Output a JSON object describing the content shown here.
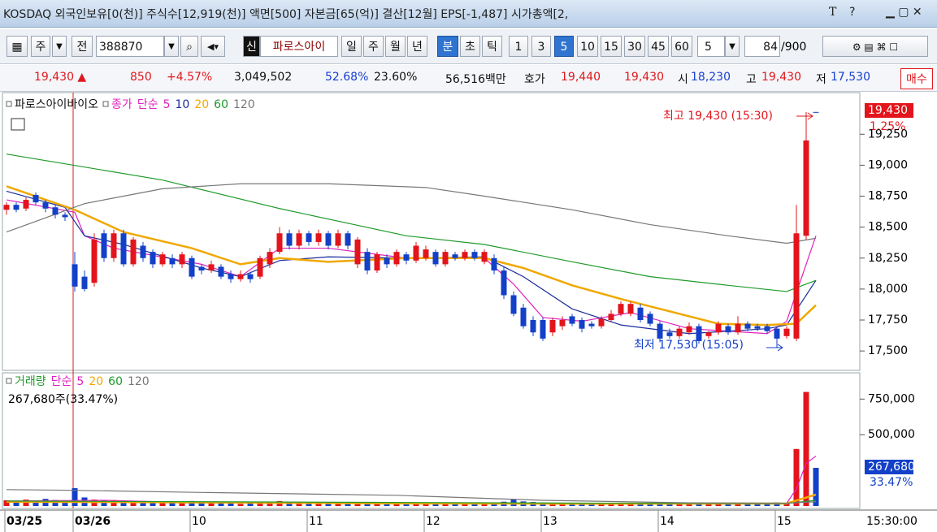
{
  "header": {
    "ticker": "KOSDAQ 외국인보유[0(천)] 주식수[12,919(천)] 액면[500] 자본금[65(억)] 결산[12월] EPS[-1,487] 시가총액[2,",
    "buttons": [
      "T",
      "?"
    ]
  },
  "toolbar": {
    "period_unit": "주",
    "mode": "전",
    "code": "388870",
    "tag": "신",
    "name": "파로스아이",
    "periods": [
      "일",
      "주",
      "월",
      "년",
      "분",
      "초",
      "틱"
    ],
    "minutes": [
      "1",
      "3",
      "5",
      "10",
      "15",
      "30",
      "45",
      "60"
    ],
    "count_input": "5",
    "shown": "84",
    "total": "/900"
  },
  "info": {
    "price": "19,430 ▲",
    "change": "850",
    "rate": "+4.57%",
    "volume": "3,049,502",
    "ratio1": "52.68%",
    "ratio2": "23.60%",
    "amount": "56,516백만",
    "quote_label": "호가",
    "ask": "19,440",
    "bid": "19,430",
    "open_label": "시",
    "open": "18,230",
    "high_label": "고",
    "high": "19,430",
    "low_label": "저",
    "low": "17,530",
    "buy": "매수"
  },
  "clock": "15:30:00",
  "chart_data": [
    {
      "type": "candlestick",
      "name": "파로스아이바이오",
      "indicator": "종가",
      "ma_type": "단순",
      "categories": [
        "03/25",
        null,
        null,
        null,
        null,
        null,
        null,
        "03/26",
        null,
        null,
        null,
        null,
        null,
        null,
        null,
        null,
        null,
        null,
        null,
        "10",
        null,
        null,
        null,
        null,
        null,
        null,
        null,
        null,
        null,
        null,
        null,
        "11",
        null,
        null,
        null,
        null,
        null,
        null,
        null,
        null,
        null,
        null,
        null,
        "12",
        null,
        null,
        null,
        null,
        null,
        null,
        null,
        null,
        null,
        null,
        null,
        "13",
        null,
        null,
        null,
        null,
        null,
        null,
        null,
        null,
        null,
        null,
        null,
        "14",
        null,
        null,
        null,
        null,
        null,
        null,
        null,
        null,
        null,
        null,
        null,
        "15",
        null,
        null,
        null,
        null
      ],
      "open": [
        18640,
        18680,
        18650,
        18760,
        18700,
        18660,
        18600,
        18200,
        18100,
        18050,
        18450,
        18250,
        18450,
        18200,
        18350,
        18300,
        18200,
        18250,
        18200,
        18250,
        18180,
        18150,
        18180,
        18120,
        18080,
        18120,
        18100,
        18200,
        18300,
        18450,
        18350,
        18450,
        18380,
        18450,
        18350,
        18450,
        18200,
        18300,
        18150,
        18250,
        18200,
        18280,
        18230,
        18250,
        18300,
        18200,
        18280,
        18250,
        18300,
        18220,
        18250,
        18150,
        17950,
        17850,
        17750,
        17750,
        17650,
        17700,
        17780,
        17750,
        17720,
        17700,
        17750,
        17800,
        17800,
        17850,
        17800,
        17720,
        17650,
        17620,
        17650,
        17700,
        17620,
        17650,
        17700,
        17650,
        17720,
        17700,
        17700,
        17680,
        17620,
        17600,
        18430,
        19430
      ],
      "high": [
        18700,
        18700,
        18740,
        18780,
        18720,
        18680,
        18620,
        18300,
        18150,
        18450,
        18480,
        18480,
        18480,
        18420,
        18380,
        18320,
        18300,
        18280,
        18300,
        18270,
        18200,
        18230,
        18200,
        18150,
        18150,
        18140,
        18270,
        18330,
        18500,
        18480,
        18480,
        18470,
        18480,
        18470,
        18480,
        18470,
        18420,
        18330,
        18300,
        18280,
        18320,
        18300,
        18380,
        18350,
        18320,
        18320,
        18300,
        18320,
        18320,
        18320,
        18280,
        18180,
        17980,
        17880,
        17780,
        17770,
        17770,
        17780,
        17800,
        17770,
        17740,
        17780,
        17830,
        17900,
        17900,
        17880,
        17820,
        17740,
        17680,
        17700,
        17730,
        17720,
        17660,
        17740,
        17720,
        17780,
        17740,
        17720,
        17720,
        17700,
        17700,
        18680,
        19430,
        19430
      ],
      "low": [
        18600,
        18620,
        18630,
        18680,
        18620,
        18570,
        18550,
        17980,
        17980,
        18020,
        18220,
        18220,
        18180,
        18180,
        18220,
        18170,
        18180,
        18170,
        18170,
        18080,
        18120,
        18130,
        18080,
        18050,
        18060,
        18050,
        18080,
        18170,
        18280,
        18320,
        18320,
        18350,
        18350,
        18320,
        18330,
        18320,
        18170,
        18120,
        18130,
        18170,
        18180,
        18200,
        18210,
        18230,
        18180,
        18180,
        18230,
        18230,
        18230,
        18200,
        18120,
        17920,
        17780,
        17680,
        17620,
        17580,
        17620,
        17670,
        17700,
        17650,
        17680,
        17680,
        17730,
        17780,
        17780,
        17730,
        17700,
        17570,
        17600,
        17600,
        17630,
        17560,
        17600,
        17630,
        17630,
        17630,
        17660,
        17660,
        17640,
        17530,
        17600,
        17580,
        18400,
        19430
      ],
      "close": [
        18680,
        18640,
        18720,
        18700,
        18650,
        18600,
        18580,
        18020,
        18000,
        18400,
        18250,
        18450,
        18200,
        18400,
        18250,
        18200,
        18280,
        18200,
        18280,
        18100,
        18150,
        18200,
        18100,
        18080,
        18120,
        18080,
        18250,
        18300,
        18450,
        18350,
        18450,
        18380,
        18450,
        18350,
        18450,
        18350,
        18400,
        18150,
        18280,
        18200,
        18300,
        18230,
        18350,
        18320,
        18200,
        18300,
        18250,
        18300,
        18250,
        18300,
        18150,
        17950,
        17800,
        17700,
        17650,
        17600,
        17750,
        17750,
        17720,
        17680,
        17700,
        17760,
        17800,
        17880,
        17880,
        17750,
        17720,
        17600,
        17620,
        17680,
        17700,
        17580,
        17650,
        17720,
        17650,
        17720,
        17680,
        17680,
        17660,
        17600,
        17680,
        18450,
        19200,
        19430
      ],
      "colors": {
        "up": "#e3141b",
        "down": "#1340c8"
      },
      "series": [
        {
          "name": "5",
          "color": "#e020c0",
          "x": [
            0,
            7,
            8,
            11,
            20,
            24,
            28,
            33,
            41,
            49,
            52,
            55,
            59,
            64,
            70,
            78,
            80,
            83
          ],
          "values": [
            18720,
            18620,
            18430,
            18330,
            18200,
            18100,
            18330,
            18330,
            18250,
            18250,
            18040,
            17770,
            17740,
            17810,
            17680,
            17640,
            17740,
            18430
          ]
        },
        {
          "name": "10",
          "color": "#1a2c9a",
          "x": [
            0,
            6,
            8,
            12,
            20,
            24,
            28,
            33,
            41,
            49,
            53,
            58,
            63,
            70,
            78,
            80,
            83
          ],
          "values": [
            18790,
            18660,
            18430,
            18360,
            18170,
            18100,
            18230,
            18260,
            18250,
            18260,
            18100,
            17840,
            17710,
            17640,
            17680,
            17710,
            18070
          ]
        },
        {
          "name": "20",
          "color": "#f0a800",
          "x": [
            0,
            7,
            12,
            19,
            24,
            28,
            33,
            41,
            49,
            53,
            58,
            63,
            68,
            73,
            78,
            81,
            83
          ],
          "values": [
            18830,
            18640,
            18460,
            18330,
            18200,
            18250,
            18220,
            18250,
            18250,
            18170,
            18030,
            17920,
            17820,
            17720,
            17710,
            17720,
            17870
          ]
        },
        {
          "name": "60",
          "color": "#1f9a2a",
          "x": [
            0,
            16,
            28,
            41,
            49,
            58,
            66,
            74,
            80,
            83
          ],
          "values": [
            19090,
            18880,
            18650,
            18430,
            18360,
            18220,
            18100,
            18030,
            17980,
            18070
          ]
        },
        {
          "name": "120",
          "color": "#777777",
          "x": [
            0,
            8,
            16,
            24,
            33,
            43,
            49,
            58,
            66,
            74,
            80,
            83
          ],
          "values": [
            18460,
            18690,
            18810,
            18850,
            18850,
            18820,
            18750,
            18640,
            18520,
            18430,
            18370,
            18410
          ]
        }
      ],
      "ylim": [
        17350,
        19560
      ],
      "yticks": [
        {
          "value": 17500,
          "label": "17,500"
        },
        {
          "value": 17750,
          "label": "17,750"
        },
        {
          "value": 18000,
          "label": "18,000"
        },
        {
          "value": 18250,
          "label": "18,250"
        },
        {
          "value": 18500,
          "label": "18,500"
        },
        {
          "value": 18750,
          "label": "18,750"
        },
        {
          "value": 19000,
          "label": "19,000"
        },
        {
          "value": 19250,
          "label": "19,250"
        }
      ],
      "high_note": "최고 19,430 (15:30)",
      "low_note": "최저 17,530 (15:05)",
      "last_label": "19,430",
      "last_change": "1.25%"
    },
    {
      "type": "bar",
      "title": "거래량",
      "ma_type": "단순",
      "values": [
        40000,
        35000,
        45000,
        30000,
        50000,
        42000,
        38000,
        125000,
        60000,
        45000,
        38000,
        42000,
        35000,
        30000,
        28000,
        32000,
        25000,
        30000,
        28000,
        35000,
        22000,
        20000,
        25000,
        18000,
        15000,
        20000,
        30000,
        28000,
        35000,
        26000,
        24000,
        20000,
        22000,
        18000,
        25000,
        20000,
        28000,
        22000,
        18000,
        15000,
        16000,
        14000,
        18000,
        15000,
        20000,
        16000,
        14000,
        15000,
        13000,
        18000,
        20000,
        30000,
        45000,
        32000,
        28000,
        25000,
        20000,
        18000,
        15000,
        16000,
        14000,
        15000,
        18000,
        20000,
        22000,
        18000,
        16000,
        20000,
        14000,
        15000,
        16000,
        22000,
        14000,
        15000,
        13000,
        16000,
        12000,
        14000,
        15000,
        25000,
        20000,
        400000,
        800000,
        267680
      ],
      "series": [
        {
          "name": "5",
          "color": "#e020c0",
          "x": [
            0,
            10,
            20,
            40,
            60,
            80,
            81,
            82,
            83
          ],
          "values": [
            35000,
            40000,
            22000,
            16000,
            16000,
            20000,
            120000,
            300000,
            350000
          ]
        },
        {
          "name": "20",
          "color": "#f0a800",
          "x": [
            0,
            20,
            40,
            60,
            80,
            83
          ],
          "values": [
            30000,
            25000,
            18000,
            16000,
            18000,
            80000
          ]
        },
        {
          "name": "60",
          "color": "#1f9a2a",
          "x": [
            0,
            20,
            40,
            60,
            80,
            83
          ],
          "values": [
            35000,
            30000,
            25000,
            20000,
            18000,
            40000
          ]
        },
        {
          "name": "120",
          "color": "#777777",
          "x": [
            0,
            7,
            20,
            40,
            55,
            70,
            80,
            83
          ],
          "values": [
            115000,
            110000,
            95000,
            75000,
            40000,
            22000,
            20000,
            30000
          ]
        }
      ],
      "ylim": [
        0,
        900000
      ],
      "yticks": [
        {
          "value": 500000,
          "label": "500,000"
        },
        {
          "value": 750000,
          "label": "750,000"
        }
      ],
      "volume_note": "267,680주(33.47%)",
      "last_label": "267,680",
      "last_change": "33.47%"
    }
  ]
}
